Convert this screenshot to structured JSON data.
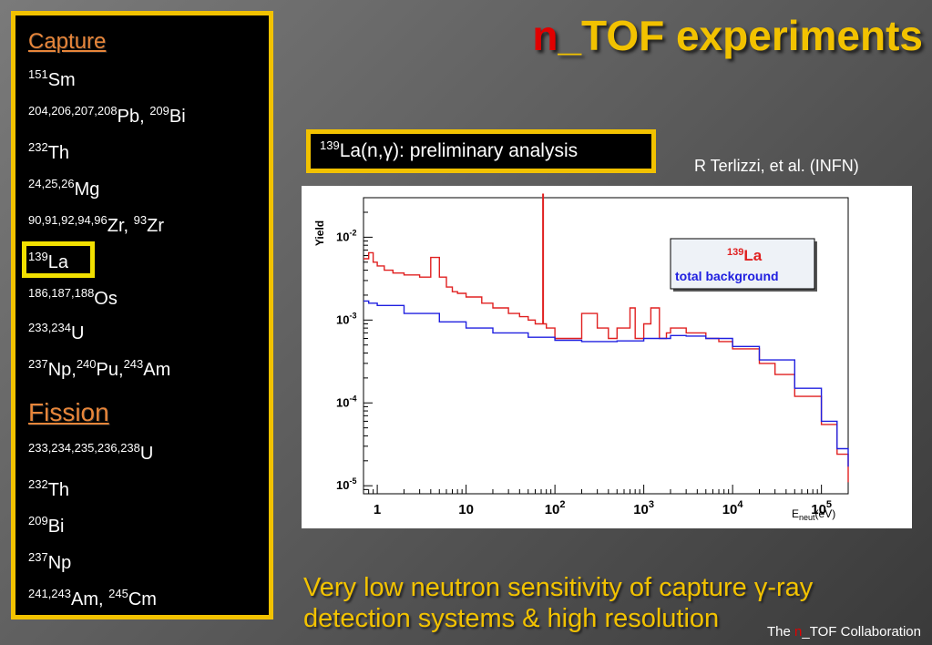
{
  "title": {
    "n_part": "n",
    "rest": "_TOF experiments"
  },
  "capture": {
    "heading": "Capture",
    "items": [
      {
        "parts": [
          {
            "sup": "151",
            "txt": "Sm"
          }
        ]
      },
      {
        "parts": [
          {
            "sup": "204,206,207,208",
            "txt": "Pb, "
          },
          {
            "sup": "209",
            "txt": "Bi"
          }
        ]
      },
      {
        "parts": [
          {
            "sup": "232",
            "txt": "Th"
          }
        ]
      },
      {
        "parts": [
          {
            "sup": "24,25,26",
            "txt": "Mg"
          }
        ]
      },
      {
        "parts": [
          {
            "sup": "90,91,92,94,96",
            "txt": "Zr, "
          },
          {
            "sup": "93",
            "txt": "Zr"
          }
        ]
      },
      {
        "parts": [
          {
            "sup": "139",
            "txt": "La"
          }
        ]
      },
      {
        "parts": [
          {
            "sup": "186,187,188",
            "txt": "Os"
          }
        ]
      },
      {
        "parts": [
          {
            "sup": "233,234",
            "txt": "U"
          }
        ]
      },
      {
        "parts": [
          {
            "sup": "237",
            "txt": "Np,"
          },
          {
            "sup": "240",
            "txt": "Pu,"
          },
          {
            "sup": "243",
            "txt": "Am"
          }
        ]
      }
    ]
  },
  "fission": {
    "heading": "Fission",
    "items": [
      {
        "parts": [
          {
            "sup": "233,234,235,236,238",
            "txt": "U"
          }
        ]
      },
      {
        "parts": [
          {
            "sup": "232",
            "txt": "Th"
          }
        ]
      },
      {
        "parts": [
          {
            "sup": "209",
            "txt": "Bi"
          }
        ]
      },
      {
        "parts": [
          {
            "sup": "237",
            "txt": "Np"
          }
        ]
      },
      {
        "parts": [
          {
            "sup": "241,243",
            "txt": "Am, "
          },
          {
            "sup": "245",
            "txt": "Cm"
          }
        ]
      }
    ]
  },
  "analysis": {
    "sup": "139",
    "text": "La(n,γ): preliminary analysis"
  },
  "author": "R Terlizzi, et al. (INFN)",
  "caption": {
    "line1": "Very low neutron sensitivity of capture γ-ray",
    "line2": "detection systems & high resolution"
  },
  "footer": {
    "prefix": "The ",
    "n_part": "n",
    "rest": "_TOF Collaboration"
  },
  "colors": {
    "accent": "#f2c200",
    "orange": "#e8863a",
    "red": "#e00000",
    "signal": "#e02020",
    "background": "#2020e0"
  },
  "chart_data": {
    "type": "line",
    "x_scale": "log",
    "y_scale": "log",
    "xlim": [
      0.7,
      200000
    ],
    "ylim": [
      8e-06,
      0.03
    ],
    "ylabel": "Yield",
    "xlabel_main": "E",
    "xlabel_sub": "neut",
    "xlabel_unit": "(eV)",
    "x_ticks": [
      {
        "v": 1,
        "label": "1"
      },
      {
        "v": 10,
        "label": "10"
      },
      {
        "v": 100,
        "label": "10",
        "exp": "2"
      },
      {
        "v": 1000,
        "label": "10",
        "exp": "3"
      },
      {
        "v": 10000,
        "label": "10",
        "exp": "4"
      },
      {
        "v": 100000,
        "label": "10",
        "exp": "5"
      }
    ],
    "y_ticks": [
      {
        "v": 0.01,
        "exp": "-2"
      },
      {
        "v": 0.001,
        "exp": "-3"
      },
      {
        "v": 0.0001,
        "exp": "-4"
      },
      {
        "v": 1e-05,
        "exp": "-5"
      }
    ],
    "legend": {
      "position": "top-right",
      "entries": [
        {
          "sup": "139",
          "label": "La",
          "color": "#e02020"
        },
        {
          "label": "total background",
          "color": "#2020e0"
        }
      ]
    },
    "series": [
      {
        "color": "#e02020",
        "x": [
          0.7,
          0.8,
          0.9,
          1,
          1.2,
          1.5,
          2,
          3,
          4,
          5,
          6,
          7,
          8,
          10,
          15,
          20,
          30,
          40,
          50,
          60,
          70,
          73,
          74,
          80,
          90,
          100,
          150,
          200,
          300,
          400,
          500,
          700,
          800,
          1000,
          1200,
          1500,
          1800,
          2000,
          3000,
          5000,
          7000,
          10000,
          20000,
          30000,
          50000,
          100000,
          150000,
          200000
        ],
        "y": [
          0.0055,
          0.0065,
          0.005,
          0.0045,
          0.004,
          0.0037,
          0.0035,
          0.0033,
          0.0057,
          0.0033,
          0.0025,
          0.0022,
          0.0021,
          0.0019,
          0.0016,
          0.0014,
          0.0012,
          0.0011,
          0.001,
          0.0009,
          0.0009,
          0.033,
          0.0009,
          0.0008,
          0.0008,
          0.0006,
          0.0006,
          0.0012,
          0.0008,
          0.0006,
          0.0008,
          0.0014,
          0.0006,
          0.0009,
          0.0014,
          0.0006,
          0.0007,
          0.0008,
          0.0007,
          0.0006,
          0.00055,
          0.00045,
          0.0003,
          0.00022,
          0.00012,
          5.5e-05,
          2.4e-05,
          1.1e-05
        ]
      },
      {
        "color": "#2020e0",
        "x": [
          0.7,
          0.8,
          1,
          2,
          5,
          10,
          20,
          50,
          100,
          200,
          500,
          1000,
          2000,
          3000,
          5000,
          10000,
          20000,
          50000,
          100000,
          150000,
          200000
        ],
        "y": [
          0.0017,
          0.0016,
          0.0015,
          0.0012,
          0.00095,
          0.0008,
          0.0007,
          0.00062,
          0.00057,
          0.00055,
          0.00056,
          0.0006,
          0.00065,
          0.00064,
          0.0006,
          0.00048,
          0.00033,
          0.00015,
          6e-05,
          2.8e-05,
          1.7e-05
        ]
      }
    ]
  }
}
